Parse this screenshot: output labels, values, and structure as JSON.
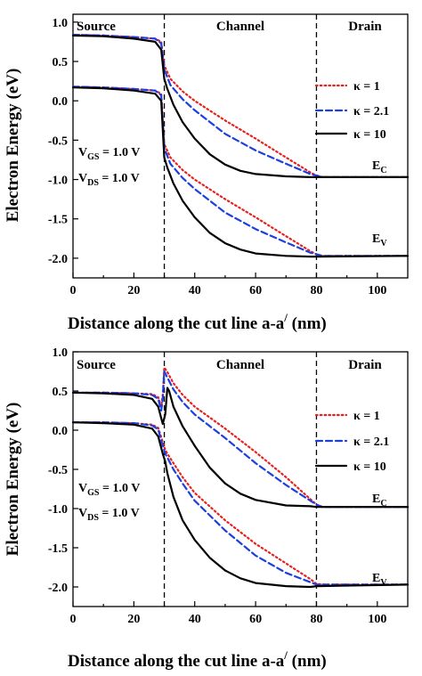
{
  "chart_data": [
    {
      "type": "line",
      "xlabel": "Distance along the cut line a-a",
      "xlabel_prime": "/",
      "xlabel_unit": " (nm)",
      "ylabel": "Electron Energy (eV)",
      "xlim": [
        0,
        110
      ],
      "ylim": [
        -2.25,
        1.1
      ],
      "xticks": [
        0,
        20,
        40,
        60,
        80,
        100
      ],
      "yticks": [
        1.0,
        0.5,
        0.0,
        -0.5,
        -1.0,
        -1.5,
        -2.0
      ],
      "ytick_labels": [
        "1.0",
        "0.5",
        "0.0",
        "-0.5",
        "-1.0",
        "-1.5",
        "-2.0"
      ],
      "boundaries": [
        30,
        80
      ],
      "regions": [
        "Source",
        "Channel",
        "Drain"
      ],
      "annotation": {
        "vgs_main": "V",
        "vgs_sub": "GS",
        "vgs_val": " = 1.0 V",
        "vds_main": "V",
        "vds_sub": "DS",
        "vds_val": " = 1.0 V"
      },
      "band_labels": {
        "ec_main": "E",
        "ec_sub": "C",
        "ev_main": "E",
        "ev_sub": "V"
      },
      "legend": {
        "position": "right",
        "entries": [
          "κ = 1",
          "κ = 2.1",
          "κ = 10"
        ]
      },
      "series": [
        {
          "name": "κ = 1",
          "color": "#e8201f",
          "dash": "dotted",
          "band": "EC",
          "points": [
            [
              0,
              0.84
            ],
            [
              10,
              0.83
            ],
            [
              20,
              0.81
            ],
            [
              27,
              0.79
            ],
            [
              29,
              0.75
            ],
            [
              30,
              0.45
            ],
            [
              32,
              0.28
            ],
            [
              36,
              0.12
            ],
            [
              40,
              0.0
            ],
            [
              50,
              -0.25
            ],
            [
              60,
              -0.48
            ],
            [
              70,
              -0.72
            ],
            [
              78,
              -0.91
            ],
            [
              80,
              -0.95
            ],
            [
              82,
              -0.97
            ],
            [
              110,
              -0.97
            ]
          ]
        },
        {
          "name": "κ = 2.1",
          "color": "#1c3fe0",
          "dash": "dashed",
          "band": "EC",
          "points": [
            [
              0,
              0.84
            ],
            [
              10,
              0.83
            ],
            [
              20,
              0.81
            ],
            [
              27,
              0.79
            ],
            [
              29,
              0.73
            ],
            [
              30,
              0.4
            ],
            [
              32,
              0.2
            ],
            [
              36,
              0.02
            ],
            [
              40,
              -0.12
            ],
            [
              50,
              -0.42
            ],
            [
              60,
              -0.63
            ],
            [
              70,
              -0.8
            ],
            [
              78,
              -0.93
            ],
            [
              80,
              -0.95
            ],
            [
              82,
              -0.97
            ],
            [
              110,
              -0.97
            ]
          ]
        },
        {
          "name": "κ = 10",
          "color": "#000000",
          "dash": "solid",
          "band": "EC",
          "points": [
            [
              0,
              0.83
            ],
            [
              10,
              0.82
            ],
            [
              20,
              0.79
            ],
            [
              27,
              0.75
            ],
            [
              29,
              0.65
            ],
            [
              30,
              0.28
            ],
            [
              31,
              0.15
            ],
            [
              33,
              -0.05
            ],
            [
              36,
              -0.27
            ],
            [
              40,
              -0.48
            ],
            [
              45,
              -0.68
            ],
            [
              50,
              -0.81
            ],
            [
              55,
              -0.89
            ],
            [
              60,
              -0.93
            ],
            [
              70,
              -0.96
            ],
            [
              78,
              -0.97
            ],
            [
              80,
              -0.97
            ],
            [
              110,
              -0.97
            ]
          ]
        },
        {
          "name": "κ = 1",
          "color": "#e8201f",
          "dash": "dotted",
          "band": "EV",
          "points": [
            [
              0,
              0.18
            ],
            [
              10,
              0.17
            ],
            [
              20,
              0.15
            ],
            [
              27,
              0.13
            ],
            [
              29,
              0.09
            ],
            [
              30,
              -0.55
            ],
            [
              32,
              -0.72
            ],
            [
              36,
              -0.88
            ],
            [
              40,
              -1.0
            ],
            [
              50,
              -1.25
            ],
            [
              60,
              -1.48
            ],
            [
              70,
              -1.72
            ],
            [
              78,
              -1.91
            ],
            [
              80,
              -1.95
            ],
            [
              82,
              -1.97
            ],
            [
              110,
              -1.97
            ]
          ]
        },
        {
          "name": "κ = 2.1",
          "color": "#1c3fe0",
          "dash": "dashed",
          "band": "EV",
          "points": [
            [
              0,
              0.18
            ],
            [
              10,
              0.17
            ],
            [
              20,
              0.15
            ],
            [
              27,
              0.13
            ],
            [
              29,
              0.07
            ],
            [
              30,
              -0.6
            ],
            [
              32,
              -0.8
            ],
            [
              36,
              -0.98
            ],
            [
              40,
              -1.12
            ],
            [
              50,
              -1.42
            ],
            [
              60,
              -1.63
            ],
            [
              70,
              -1.8
            ],
            [
              78,
              -1.93
            ],
            [
              80,
              -1.95
            ],
            [
              82,
              -1.97
            ],
            [
              110,
              -1.97
            ]
          ]
        },
        {
          "name": "κ = 10",
          "color": "#000000",
          "dash": "solid",
          "band": "EV",
          "points": [
            [
              0,
              0.17
            ],
            [
              10,
              0.16
            ],
            [
              20,
              0.13
            ],
            [
              27,
              0.09
            ],
            [
              29,
              0.0
            ],
            [
              30,
              -0.72
            ],
            [
              31,
              -0.85
            ],
            [
              33,
              -1.05
            ],
            [
              36,
              -1.27
            ],
            [
              40,
              -1.48
            ],
            [
              45,
              -1.68
            ],
            [
              50,
              -1.81
            ],
            [
              55,
              -1.89
            ],
            [
              60,
              -1.94
            ],
            [
              70,
              -1.97
            ],
            [
              78,
              -1.98
            ],
            [
              80,
              -1.98
            ],
            [
              110,
              -1.97
            ]
          ]
        }
      ]
    },
    {
      "type": "line",
      "xlabel": "Distance along the cut line a-a",
      "xlabel_prime": "/",
      "xlabel_unit": " (nm)",
      "ylabel": "Electron Energy (eV)",
      "xlim": [
        0,
        110
      ],
      "ylim": [
        -2.25,
        1.0
      ],
      "xticks": [
        0,
        20,
        40,
        60,
        80,
        100
      ],
      "yticks": [
        1.0,
        0.5,
        0.0,
        -0.5,
        -1.0,
        -1.5,
        -2.0
      ],
      "ytick_labels": [
        "1.0",
        "0.5",
        "0.0",
        "-0.5",
        "-1.0",
        "-1.5",
        "-2.0"
      ],
      "boundaries": [
        30,
        80
      ],
      "regions": [
        "Source",
        "Channel",
        "Drain"
      ],
      "annotation": {
        "vgs_main": "V",
        "vgs_sub": "GS",
        "vgs_val": " = 1.0 V",
        "vds_main": "V",
        "vds_sub": "DS",
        "vds_val": " = 1.0 V"
      },
      "band_labels": {
        "ec_main": "E",
        "ec_sub": "C",
        "ev_main": "E",
        "ev_sub": "V"
      },
      "legend": {
        "position": "right",
        "entries": [
          "κ = 1",
          "κ = 2.1",
          "κ = 10"
        ]
      },
      "series": [
        {
          "name": "κ = 1",
          "color": "#e8201f",
          "dash": "dotted",
          "band": "EC",
          "points": [
            [
              0,
              0.48
            ],
            [
              10,
              0.48
            ],
            [
              20,
              0.47
            ],
            [
              26,
              0.46
            ],
            [
              28,
              0.42
            ],
            [
              29,
              0.3
            ],
            [
              29.5,
              0.45
            ],
            [
              30,
              0.8
            ],
            [
              31,
              0.74
            ],
            [
              33,
              0.6
            ],
            [
              36,
              0.45
            ],
            [
              40,
              0.3
            ],
            [
              50,
              0.02
            ],
            [
              60,
              -0.28
            ],
            [
              70,
              -0.6
            ],
            [
              78,
              -0.88
            ],
            [
              80,
              -0.95
            ],
            [
              82,
              -0.98
            ],
            [
              110,
              -0.98
            ]
          ]
        },
        {
          "name": "κ = 2.1",
          "color": "#1c3fe0",
          "dash": "dashed",
          "band": "EC",
          "points": [
            [
              0,
              0.48
            ],
            [
              10,
              0.48
            ],
            [
              20,
              0.47
            ],
            [
              26,
              0.45
            ],
            [
              28,
              0.4
            ],
            [
              29,
              0.25
            ],
            [
              29.5,
              0.4
            ],
            [
              30,
              0.75
            ],
            [
              31,
              0.67
            ],
            [
              33,
              0.52
            ],
            [
              36,
              0.36
            ],
            [
              40,
              0.2
            ],
            [
              50,
              -0.1
            ],
            [
              60,
              -0.42
            ],
            [
              70,
              -0.7
            ],
            [
              78,
              -0.9
            ],
            [
              80,
              -0.95
            ],
            [
              82,
              -0.98
            ],
            [
              110,
              -0.98
            ]
          ]
        },
        {
          "name": "κ = 10",
          "color": "#000000",
          "dash": "solid",
          "band": "EC",
          "points": [
            [
              0,
              0.48
            ],
            [
              10,
              0.47
            ],
            [
              20,
              0.45
            ],
            [
              26,
              0.4
            ],
            [
              28,
              0.3
            ],
            [
              29.5,
              0.08
            ],
            [
              30.3,
              0.2
            ],
            [
              31,
              0.54
            ],
            [
              31.6,
              0.5
            ],
            [
              33,
              0.3
            ],
            [
              36,
              0.05
            ],
            [
              40,
              -0.2
            ],
            [
              45,
              -0.48
            ],
            [
              50,
              -0.68
            ],
            [
              55,
              -0.81
            ],
            [
              60,
              -0.89
            ],
            [
              70,
              -0.96
            ],
            [
              78,
              -0.97
            ],
            [
              80,
              -0.98
            ],
            [
              110,
              -0.98
            ]
          ]
        },
        {
          "name": "κ = 1",
          "color": "#e8201f",
          "dash": "dotted",
          "band": "EV",
          "points": [
            [
              0,
              0.1
            ],
            [
              10,
              0.1
            ],
            [
              20,
              0.09
            ],
            [
              26,
              0.07
            ],
            [
              28,
              0.03
            ],
            [
              29.5,
              -0.15
            ],
            [
              30.3,
              -0.25
            ],
            [
              31,
              -0.3
            ],
            [
              33,
              -0.42
            ],
            [
              36,
              -0.6
            ],
            [
              40,
              -0.8
            ],
            [
              50,
              -1.15
            ],
            [
              60,
              -1.45
            ],
            [
              70,
              -1.7
            ],
            [
              78,
              -1.9
            ],
            [
              80,
              -1.96
            ],
            [
              82,
              -1.97
            ],
            [
              110,
              -1.97
            ]
          ]
        },
        {
          "name": "κ = 2.1",
          "color": "#1c3fe0",
          "dash": "dashed",
          "band": "EV",
          "points": [
            [
              0,
              0.1
            ],
            [
              10,
              0.1
            ],
            [
              20,
              0.09
            ],
            [
              26,
              0.06
            ],
            [
              28,
              0.01
            ],
            [
              29.5,
              -0.2
            ],
            [
              30.3,
              -0.3
            ],
            [
              31,
              -0.35
            ],
            [
              33,
              -0.5
            ],
            [
              36,
              -0.68
            ],
            [
              40,
              -0.9
            ],
            [
              50,
              -1.28
            ],
            [
              60,
              -1.6
            ],
            [
              70,
              -1.82
            ],
            [
              78,
              -1.94
            ],
            [
              80,
              -1.97
            ],
            [
              82,
              -1.97
            ],
            [
              110,
              -1.97
            ]
          ]
        },
        {
          "name": "κ = 10",
          "color": "#000000",
          "dash": "solid",
          "band": "EV",
          "points": [
            [
              0,
              0.1
            ],
            [
              10,
              0.09
            ],
            [
              20,
              0.07
            ],
            [
              26,
              0.02
            ],
            [
              28,
              -0.08
            ],
            [
              29.5,
              -0.3
            ],
            [
              30.3,
              -0.4
            ],
            [
              31,
              -0.55
            ],
            [
              33,
              -0.85
            ],
            [
              36,
              -1.15
            ],
            [
              40,
              -1.4
            ],
            [
              45,
              -1.63
            ],
            [
              50,
              -1.79
            ],
            [
              55,
              -1.89
            ],
            [
              60,
              -1.95
            ],
            [
              70,
              -1.99
            ],
            [
              78,
              -2.0
            ],
            [
              80,
              -1.99
            ],
            [
              110,
              -1.97
            ]
          ]
        }
      ]
    }
  ]
}
